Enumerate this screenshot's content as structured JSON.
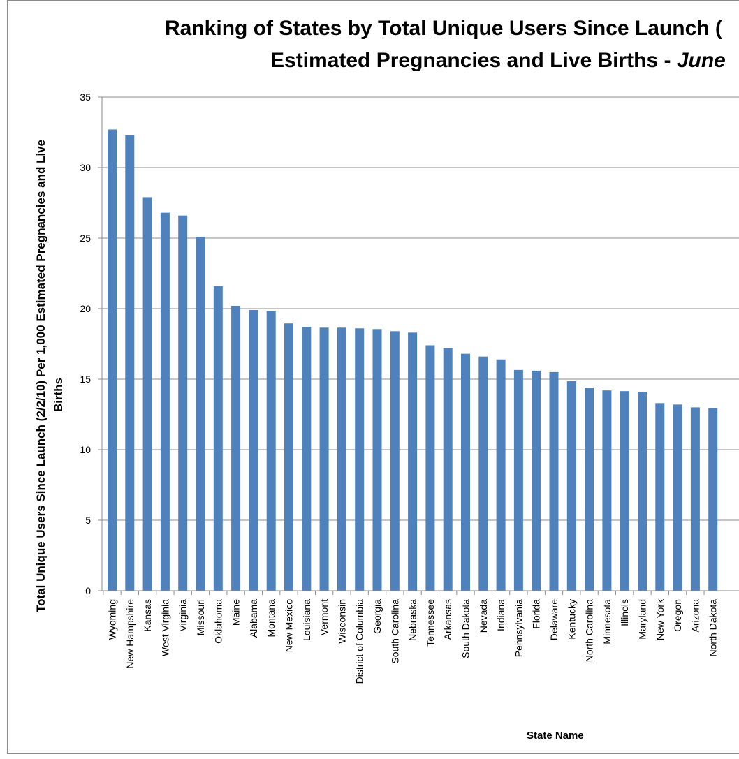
{
  "chart_data": {
    "type": "bar",
    "title_lines": [
      "Ranking of States by Total Unique Users Since Launch (",
      "Estimated Pregnancies and Live Births - "
    ],
    "title_em": "June",
    "xlabel": "State Name",
    "ylabel_lines": [
      "Total Unique Users Since Launch (2/2/10) Per 1,000 Estimated  Pregnancies and Live",
      "Births"
    ],
    "ylim": [
      0,
      35
    ],
    "yticks": [
      0,
      5,
      10,
      15,
      20,
      25,
      30,
      35
    ],
    "grid": true,
    "bar_color": "#4f81bd",
    "categories": [
      "Wyoming",
      "New Hampshire",
      "Kansas",
      "West Virginia",
      "Virginia",
      "Missouri",
      "Oklahoma",
      "Maine",
      "Alabama",
      "Montana",
      "New Mexico",
      "Louisiana",
      "Vermont",
      "Wisconsin",
      "District of Columbia",
      "Georgia",
      "South Carolina",
      "Nebraska",
      "Tennessee",
      "Arkansas",
      "South Dakota",
      "Nevada",
      "Indiana",
      "Pennsylvania",
      "Florida",
      "Delaware",
      "Kentucky",
      "North Carolina",
      "Minnesota",
      "Illinois",
      "Maryland",
      "New York",
      "Oregon",
      "Arizona",
      "North Dakota"
    ],
    "values": [
      32.7,
      32.3,
      27.9,
      26.8,
      26.6,
      25.1,
      21.6,
      20.2,
      19.9,
      19.85,
      18.95,
      18.7,
      18.65,
      18.65,
      18.6,
      18.55,
      18.4,
      18.3,
      17.4,
      17.2,
      16.8,
      16.6,
      16.4,
      15.65,
      15.6,
      15.5,
      14.85,
      14.4,
      14.2,
      14.15,
      14.1,
      13.3,
      13.2,
      13.0,
      12.95
    ]
  }
}
